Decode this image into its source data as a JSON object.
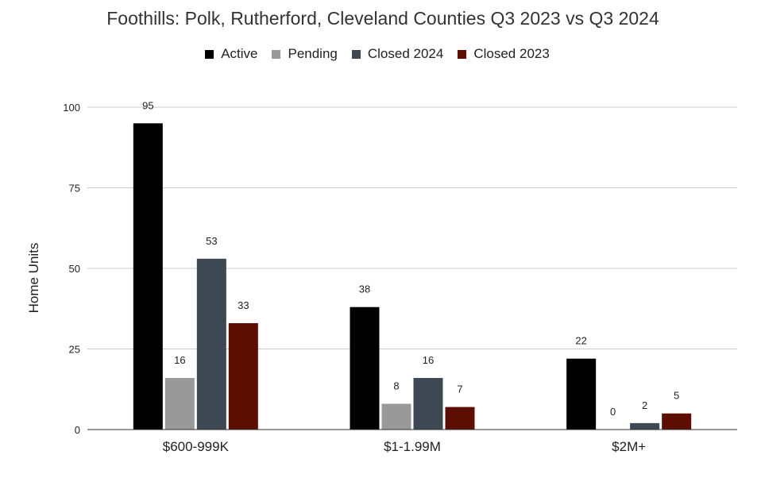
{
  "chart_data": {
    "type": "bar",
    "title": "Foothills: Polk, Rutherford, Cleveland Counties Q3 2023 vs Q3 2024",
    "xlabel": "",
    "ylabel": "Home Units",
    "ylim": [
      0,
      100
    ],
    "yticks": [
      0,
      25,
      50,
      75,
      100
    ],
    "grid": true,
    "legend_position": "top",
    "categories": [
      "$600-999K",
      "$1-1.99M",
      "$2M+"
    ],
    "series": [
      {
        "name": "Active",
        "color": "#000000",
        "values": [
          95,
          38,
          22
        ]
      },
      {
        "name": "Pending",
        "color": "#999999",
        "values": [
          16,
          8,
          0
        ]
      },
      {
        "name": "Closed 2024",
        "color": "#3d4852",
        "values": [
          53,
          16,
          2
        ]
      },
      {
        "name": "Closed 2023",
        "color": "#5c0f00",
        "values": [
          33,
          7,
          5
        ]
      }
    ]
  }
}
